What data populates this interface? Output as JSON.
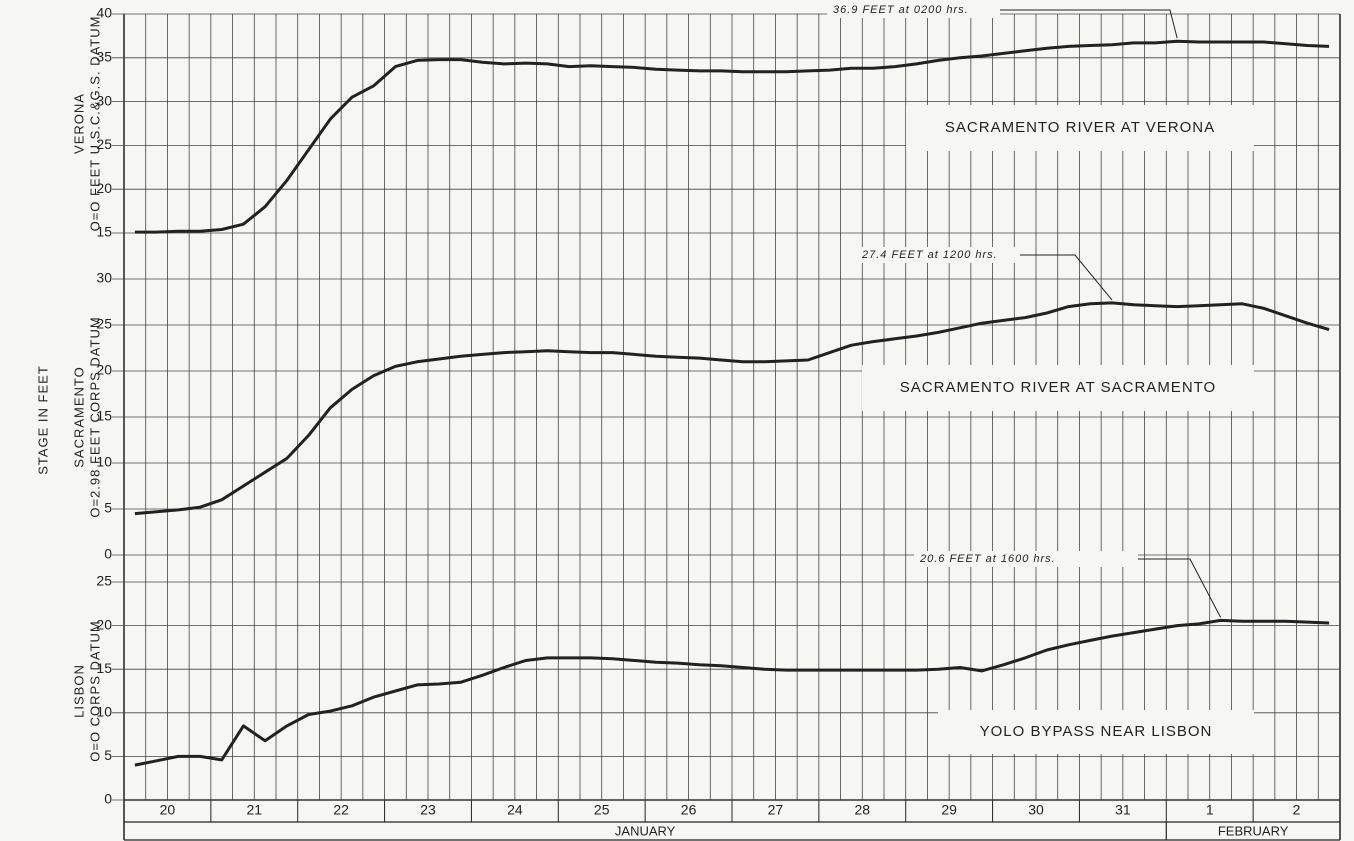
{
  "chart_data": {
    "type": "line",
    "ylabel": "STAGE IN FEET",
    "categories": [
      null,
      null,
      "20",
      null,
      null,
      null,
      "21",
      null,
      null,
      null,
      "22",
      null,
      null,
      null,
      "23",
      null,
      null,
      null,
      "24",
      null,
      null,
      null,
      "25",
      null,
      null,
      null,
      "26",
      null,
      null,
      null,
      "27",
      null,
      null,
      null,
      "28",
      null,
      null,
      null,
      "29",
      null,
      null,
      null,
      "30",
      null,
      null,
      null,
      "31",
      null,
      null,
      null,
      "1",
      null,
      null,
      null,
      "2",
      null
    ],
    "months": [
      "JANUARY",
      "FEBRUARY"
    ],
    "series": [
      {
        "name": "SACRAMENTO RIVER AT VERONA",
        "station": "VERONA",
        "datum": "O=O FEET U.S.C.&G.S. DATUM",
        "color": "#222222",
        "annotation": "36.9  FEET  at  0200  hrs.",
        "ylim": [
          15,
          40
        ],
        "yticks": [
          15,
          20,
          25,
          30,
          35,
          40
        ],
        "values": [
          15.1,
          15.1,
          15.2,
          15.2,
          15.4,
          16.0,
          18.0,
          21.0,
          24.5,
          28.0,
          30.5,
          31.8,
          34.0,
          34.7,
          34.8,
          34.8,
          34.5,
          34.3,
          34.4,
          34.3,
          34.0,
          34.1,
          34.0,
          33.9,
          33.7,
          33.6,
          33.5,
          33.5,
          33.4,
          33.4,
          33.4,
          33.5,
          33.6,
          33.8,
          33.8,
          34.0,
          34.3,
          34.7,
          35.0,
          35.2,
          35.5,
          35.8,
          36.1,
          36.3,
          36.4,
          36.5,
          36.7,
          36.7,
          36.9,
          36.8,
          36.8,
          36.8,
          36.8,
          36.6,
          36.4,
          36.3
        ]
      },
      {
        "name": "SACRAMENTO RIVER  AT  SACRAMENTO",
        "station": "SACRAMENTO",
        "datum": "O=2.98 FEET CORPS DATUM",
        "color": "#222222",
        "annotation": "27.4  FEET  at  1200  hrs.",
        "ylim": [
          0,
          30
        ],
        "yticks": [
          0,
          5,
          10,
          15,
          20,
          25,
          30
        ],
        "values": [
          4.5,
          4.7,
          4.9,
          5.2,
          6.0,
          7.5,
          9.0,
          10.5,
          13.0,
          16.0,
          18.0,
          19.5,
          20.5,
          21.0,
          21.3,
          21.6,
          21.8,
          22.0,
          22.1,
          22.2,
          22.1,
          22.0,
          22.0,
          21.8,
          21.6,
          21.5,
          21.4,
          21.2,
          21.0,
          21.0,
          21.1,
          21.2,
          22.0,
          22.8,
          23.2,
          23.5,
          23.8,
          24.2,
          24.7,
          25.2,
          25.5,
          25.8,
          26.3,
          27.0,
          27.3,
          27.4,
          27.2,
          27.1,
          27.0,
          27.1,
          27.2,
          27.3,
          26.8,
          26.0,
          25.2,
          24.5
        ]
      },
      {
        "name": "YOLO  BYPASS  NEAR  LISBON",
        "station": "LISBON",
        "datum": "O=O CORPS DATUM",
        "color": "#222222",
        "annotation": "20.6  FEET  at  1600  hrs.",
        "ylim": [
          0,
          25
        ],
        "yticks": [
          0,
          5,
          10,
          15,
          20,
          25
        ],
        "values": [
          4.0,
          4.5,
          5.0,
          5.0,
          4.6,
          8.5,
          6.8,
          8.5,
          9.8,
          10.2,
          10.8,
          11.8,
          12.5,
          13.2,
          13.3,
          13.5,
          14.3,
          15.2,
          16.0,
          16.3,
          16.3,
          16.3,
          16.2,
          16.0,
          15.8,
          15.7,
          15.5,
          15.4,
          15.2,
          15.0,
          14.9,
          14.9,
          14.9,
          14.9,
          14.9,
          14.9,
          14.9,
          15.0,
          15.2,
          14.8,
          15.5,
          16.3,
          17.2,
          17.8,
          18.3,
          18.8,
          19.2,
          19.6,
          20.0,
          20.2,
          20.6,
          20.5,
          20.5,
          20.5,
          20.4,
          20.3
        ]
      }
    ]
  }
}
